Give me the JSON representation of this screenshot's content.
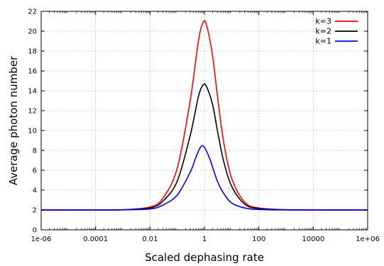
{
  "chart_data": {
    "type": "line",
    "title": "",
    "xlabel": "Scaled dephasing rate",
    "ylabel": "Average photon number",
    "xscale": "log",
    "xlim": [
      1e-06,
      1000000.0
    ],
    "ylim": [
      0,
      22
    ],
    "grid": true,
    "legend_position": "top-right",
    "x_ticks": [
      1e-06,
      0.0001,
      0.01,
      1,
      100,
      10000,
      1000000.0
    ],
    "x_tick_labels": [
      "1e-06",
      "0.0001",
      "0.01",
      "1",
      "100",
      "10000",
      "1e+06"
    ],
    "y_ticks": [
      0,
      2,
      4,
      6,
      8,
      10,
      12,
      14,
      16,
      18,
      20,
      22
    ],
    "y_tick_labels": [
      "0",
      "2",
      "4",
      "6",
      "8",
      "10",
      "12",
      "14",
      "16",
      "18",
      "20",
      "22"
    ],
    "series": [
      {
        "name": "k=3",
        "color": "#ff0000",
        "points": [
          [
            1e-06,
            2.0
          ],
          [
            0.0001,
            2.0
          ],
          [
            0.001,
            2.02
          ],
          [
            0.01,
            2.3
          ],
          [
            0.03,
            3.2
          ],
          [
            0.1,
            6.2
          ],
          [
            0.3,
            13.0
          ],
          [
            0.6,
            19.0
          ],
          [
            0.9,
            20.9
          ],
          [
            1.2,
            20.6
          ],
          [
            2,
            17.5
          ],
          [
            3,
            13.5
          ],
          [
            5,
            9.0
          ],
          [
            10,
            5.2
          ],
          [
            30,
            2.8
          ],
          [
            100,
            2.2
          ],
          [
            1000,
            2.02
          ],
          [
            10000,
            2.0
          ],
          [
            1000000.0,
            2.0
          ]
        ]
      },
      {
        "name": "k=2",
        "color": "#000000",
        "points": [
          [
            1e-06,
            2.0
          ],
          [
            0.0001,
            2.0
          ],
          [
            0.001,
            2.02
          ],
          [
            0.01,
            2.2
          ],
          [
            0.03,
            2.9
          ],
          [
            0.1,
            4.9
          ],
          [
            0.3,
            9.5
          ],
          [
            0.6,
            13.4
          ],
          [
            0.9,
            14.6
          ],
          [
            1.2,
            14.4
          ],
          [
            2,
            12.6
          ],
          [
            3,
            10.0
          ],
          [
            5,
            7.0
          ],
          [
            10,
            4.4
          ],
          [
            30,
            2.6
          ],
          [
            100,
            2.15
          ],
          [
            1000,
            2.02
          ],
          [
            10000,
            2.0
          ],
          [
            1000000.0,
            2.0
          ]
        ]
      },
      {
        "name": "k=1",
        "color": "#0000ff",
        "points": [
          [
            1e-06,
            2.0
          ],
          [
            0.0001,
            2.0
          ],
          [
            0.001,
            2.01
          ],
          [
            0.01,
            2.1
          ],
          [
            0.03,
            2.5
          ],
          [
            0.1,
            3.5
          ],
          [
            0.3,
            5.8
          ],
          [
            0.5,
            7.4
          ],
          [
            0.75,
            8.4
          ],
          [
            1.0,
            8.3
          ],
          [
            1.5,
            7.3
          ],
          [
            2,
            6.3
          ],
          [
            3,
            4.9
          ],
          [
            5,
            3.7
          ],
          [
            10,
            2.7
          ],
          [
            30,
            2.2
          ],
          [
            100,
            2.05
          ],
          [
            1000,
            2.0
          ],
          [
            1000000.0,
            2.0
          ]
        ]
      }
    ]
  }
}
